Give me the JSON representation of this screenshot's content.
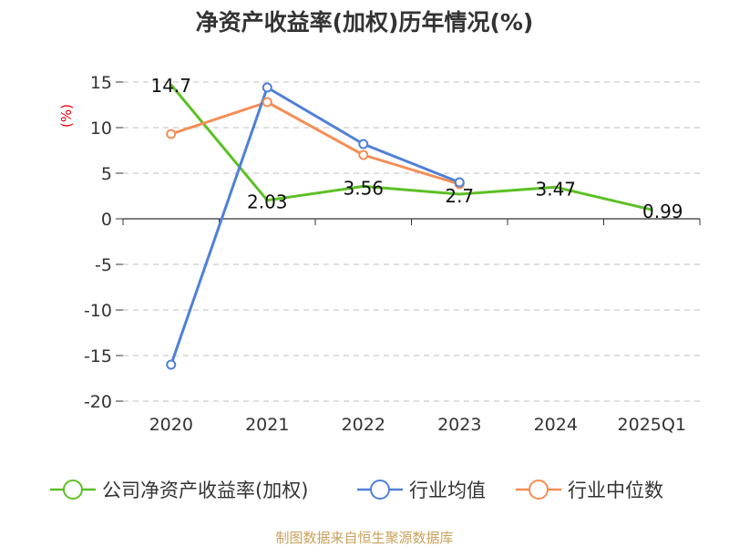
{
  "colors": {
    "series": [
      "#5cc025",
      "#4f80d8",
      "#f68d55"
    ],
    "grid": "#cccccc",
    "axis": "#333333",
    "ylabel": "#e3000f",
    "source": "#c9a15c",
    "title": "#333333"
  },
  "chart_data": {
    "type": "line",
    "title": "净资产收益率(加权)历年情况(%)",
    "ylabel": "(%)",
    "xlabel": "",
    "categories": [
      "2020",
      "2021",
      "2022",
      "2023",
      "2024",
      "2025Q1"
    ],
    "ylim": [
      -20,
      15
    ],
    "yticks": [
      15,
      10,
      5,
      0,
      -5,
      -10,
      -15,
      -20
    ],
    "grid": "horizontal-dashed",
    "legend": "bottom",
    "series": [
      {
        "name": "公司净资产收益率(加权)",
        "values": [
          14.7,
          2.03,
          3.56,
          2.7,
          3.47,
          0.99
        ],
        "labels": [
          "14.7",
          "2.03",
          "3.56",
          "2.7",
          "3.47",
          "0.99"
        ]
      },
      {
        "name": "行业均值",
        "values": [
          -16.0,
          14.4,
          8.2,
          4.0,
          null,
          null
        ]
      },
      {
        "name": "行业中位数",
        "values": [
          9.3,
          12.8,
          7.0,
          3.8,
          null,
          null
        ]
      }
    ]
  },
  "source": "制图数据来自恒生聚源数据库"
}
